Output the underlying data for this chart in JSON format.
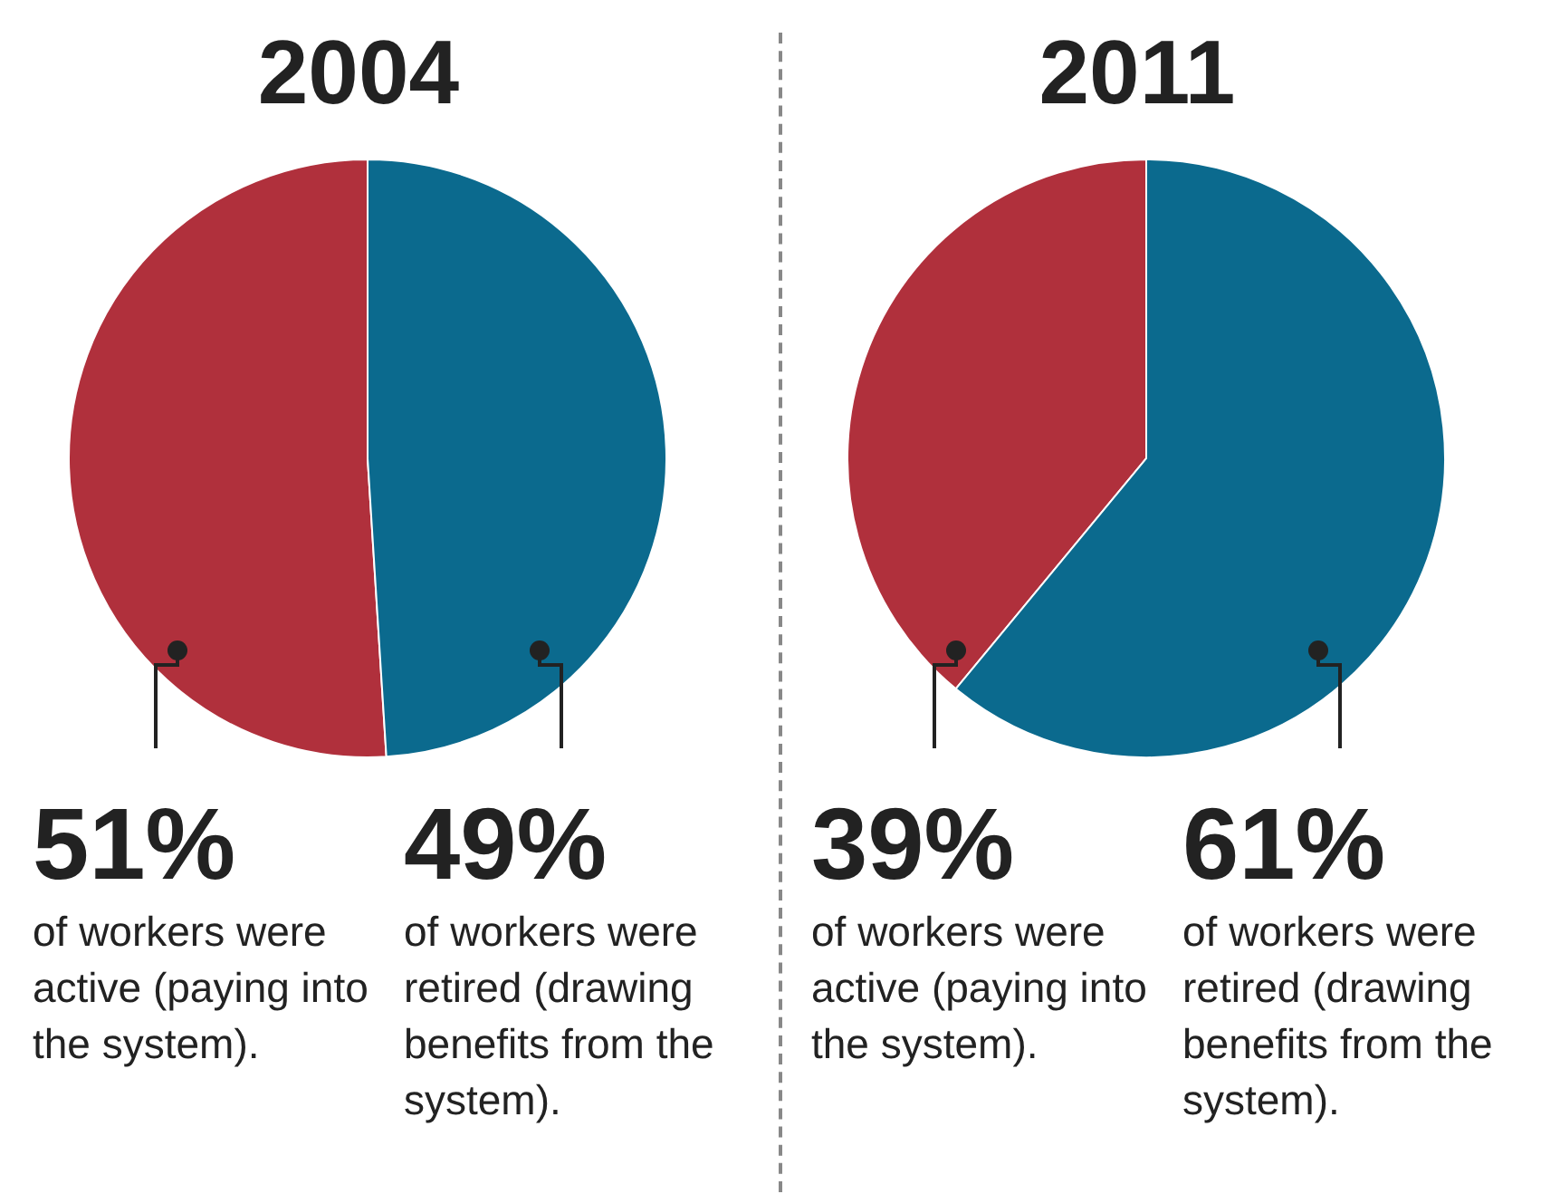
{
  "chart_data": [
    {
      "type": "pie",
      "title": "2004",
      "categories": [
        "of workers were active (paying into the system).",
        "of workers were retired (drawing benefits from the system)."
      ],
      "values": [
        51,
        49
      ],
      "value_labels": [
        "51%",
        "49%"
      ],
      "colors": [
        "#b0303c",
        "#0b6a8e"
      ],
      "legend": false
    },
    {
      "type": "pie",
      "title": "2011",
      "categories": [
        "of workers were active (paying into the system).",
        "of workers were retired (drawing benefits from the system)."
      ],
      "values": [
        39,
        61
      ],
      "value_labels": [
        "39%",
        "61%"
      ],
      "colors": [
        "#b0303c",
        "#0b6a8e"
      ],
      "legend": false
    }
  ]
}
